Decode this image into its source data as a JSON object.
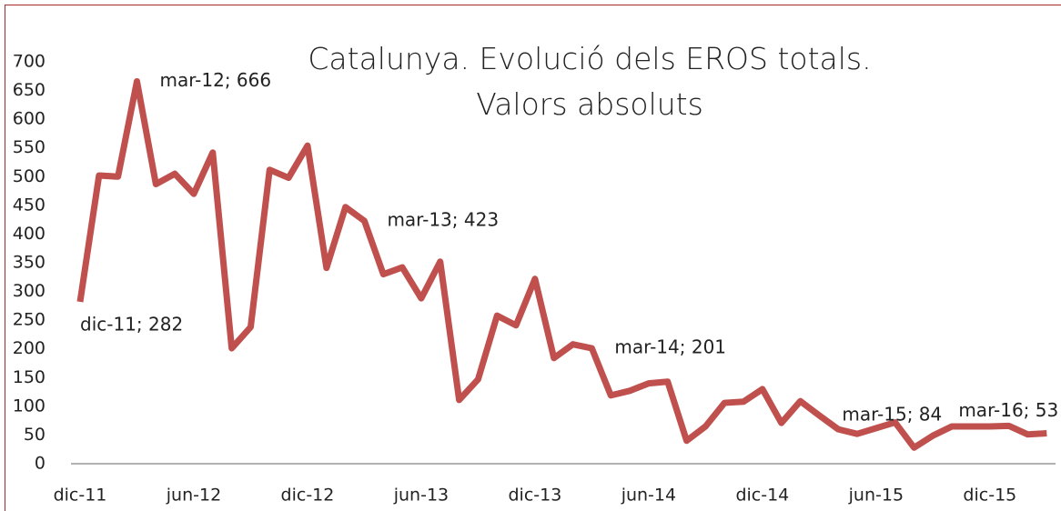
{
  "chart_data": {
    "type": "line",
    "title": "Catalunya. Evolució dels EROS totals. Valors absoluts",
    "categories": [
      "dic-11",
      null,
      null,
      null,
      null,
      null,
      "jun-12",
      null,
      null,
      null,
      null,
      null,
      "dic-12",
      null,
      null,
      null,
      null,
      null,
      "jun-13",
      null,
      null,
      null,
      null,
      null,
      "dic-13",
      null,
      null,
      null,
      null,
      null,
      "jun-14",
      null,
      null,
      null,
      null,
      null,
      "dic-14",
      null,
      null,
      null,
      null,
      null,
      "jun-15",
      null,
      null,
      null,
      null,
      null,
      "dic-15",
      null,
      null,
      null
    ],
    "series": [
      {
        "name": "EROS",
        "color": "#c0504d",
        "values": [
          282,
          502,
          500,
          666,
          487,
          505,
          470,
          542,
          201,
          238,
          512,
          498,
          554,
          341,
          447,
          423,
          330,
          342,
          288,
          352,
          111,
          147,
          258,
          241,
          322,
          184,
          208,
          201,
          119,
          127,
          140,
          143,
          40,
          65,
          106,
          108,
          130,
          71,
          109,
          84,
          60,
          52,
          62,
          72,
          28,
          49,
          65,
          65,
          65,
          66,
          51,
          53
        ]
      }
    ],
    "value_labels": [
      "dic-11; 282",
      null,
      null,
      "mar-12; 666",
      null,
      null,
      null,
      null,
      null,
      null,
      null,
      null,
      null,
      null,
      null,
      "mar-13; 423",
      null,
      null,
      null,
      null,
      null,
      null,
      null,
      null,
      null,
      null,
      null,
      "mar-14; 201",
      null,
      null,
      null,
      null,
      null,
      null,
      null,
      null,
      null,
      null,
      null,
      "mar-15; 84",
      null,
      null,
      null,
      null,
      null,
      null,
      null,
      null,
      null,
      null,
      null,
      "mar-16; 53"
    ],
    "ylim": [
      0,
      700
    ],
    "yticks": [
      0,
      50,
      100,
      150,
      200,
      250,
      300,
      350,
      400,
      450,
      500,
      550,
      600,
      650,
      700
    ]
  }
}
